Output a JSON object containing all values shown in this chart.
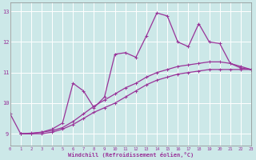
{
  "xlabel": "Windchill (Refroidissement éolien,°C)",
  "bg_color": "#cce8e8",
  "grid_color": "#ffffff",
  "line_color": "#993399",
  "xlim": [
    0,
    23
  ],
  "ylim": [
    8.6,
    13.3
  ],
  "xticks": [
    0,
    1,
    2,
    3,
    4,
    5,
    6,
    7,
    8,
    9,
    10,
    11,
    12,
    13,
    14,
    15,
    16,
    17,
    18,
    19,
    20,
    21,
    22,
    23
  ],
  "yticks": [
    9,
    10,
    11,
    12,
    13
  ],
  "series1_x": [
    1,
    2,
    3,
    4,
    5,
    6,
    7,
    8,
    9,
    10,
    11,
    12,
    13,
    14,
    15,
    16,
    17,
    18,
    19,
    20,
    21,
    22,
    23
  ],
  "series1_y": [
    9.0,
    9.0,
    9.0,
    9.05,
    9.15,
    9.3,
    9.5,
    9.7,
    9.85,
    10.0,
    10.2,
    10.4,
    10.6,
    10.75,
    10.85,
    10.95,
    11.0,
    11.05,
    11.1,
    11.1,
    11.1,
    11.1,
    11.1
  ],
  "series2_x": [
    1,
    2,
    3,
    4,
    5,
    6,
    7,
    8,
    9,
    10,
    11,
    12,
    13,
    14,
    15,
    16,
    17,
    18,
    19,
    20,
    21,
    22,
    23
  ],
  "series2_y": [
    9.0,
    9.02,
    9.05,
    9.1,
    9.2,
    9.4,
    9.65,
    9.9,
    10.1,
    10.3,
    10.5,
    10.65,
    10.85,
    11.0,
    11.1,
    11.2,
    11.25,
    11.3,
    11.35,
    11.35,
    11.3,
    11.15,
    11.1
  ],
  "series3_x": [
    0,
    1,
    2,
    3,
    4,
    5,
    6,
    7,
    8,
    9,
    10,
    11,
    12,
    13,
    14,
    15,
    16,
    17,
    18,
    19,
    20,
    21,
    22,
    23
  ],
  "series3_y": [
    9.65,
    9.0,
    9.0,
    9.05,
    9.15,
    9.35,
    10.65,
    10.4,
    9.85,
    10.2,
    11.6,
    11.65,
    11.5,
    12.2,
    12.95,
    12.85,
    12.0,
    11.85,
    12.6,
    12.0,
    11.95,
    11.3,
    11.2,
    11.1
  ]
}
